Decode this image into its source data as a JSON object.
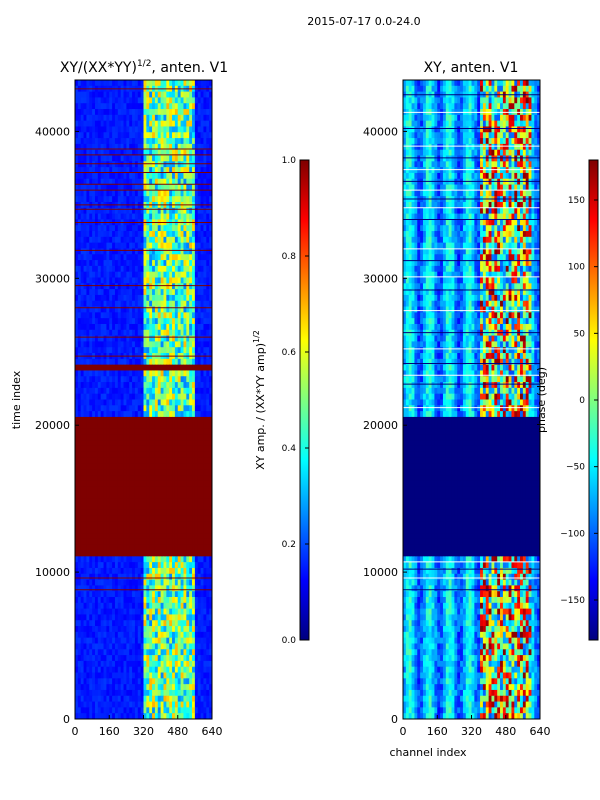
{
  "figure": {
    "suptitle": "2015-07-17 0.0-24.0"
  },
  "colors": {
    "jet": [
      "#00007f",
      "#0000ff",
      "#007fff",
      "#00ffff",
      "#7fff7f",
      "#ffff00",
      "#ff7f00",
      "#ff0000",
      "#7f0000"
    ]
  },
  "chart_data": [
    {
      "type": "heatmap",
      "title": "XY/(XX*YY)",
      "title_exponent": "1/2",
      "title_suffix": ", anten. V1",
      "xlabel": "",
      "ylabel": "time index",
      "xlim": [
        0,
        640
      ],
      "ylim": [
        0,
        43500
      ],
      "xticks": [
        0,
        160,
        320,
        480,
        640
      ],
      "yticks": [
        0,
        10000,
        20000,
        30000,
        40000
      ],
      "colorbar": {
        "label": "XY amp. / (XX*YY amp)",
        "label_exponent": "1/2",
        "range": [
          0.0,
          1.0
        ],
        "ticks": [
          "0.0",
          "0.2",
          "0.4",
          "0.6",
          "0.8",
          "1.0"
        ]
      },
      "saturated_bands": [
        [
          11200,
          20400
        ],
        [
          23600,
          24200
        ]
      ],
      "flag_lines": [
        8800,
        9600,
        24700,
        26000,
        28000,
        29500,
        31900,
        33800,
        34700,
        35000,
        36000,
        36400,
        37200,
        37800,
        38400,
        38800,
        42900
      ],
      "active_channel_range": [
        320,
        560
      ],
      "background_value": 0.15
    },
    {
      "type": "heatmap",
      "title": "XY, anten. V1",
      "xlabel": "channel index",
      "ylabel": "",
      "xlim": [
        0,
        640
      ],
      "ylim": [
        0,
        43500
      ],
      "xticks": [
        0,
        160,
        320,
        480,
        640
      ],
      "yticks": [
        0,
        10000,
        20000,
        30000,
        40000
      ],
      "colorbar": {
        "label": "phase (deg)",
        "range": [
          -180,
          180
        ],
        "ticks": [
          "150",
          "100",
          "50",
          "0",
          "−50",
          "−100",
          "−150"
        ]
      },
      "constant_band": [
        11200,
        20400
      ],
      "flag_lines": [
        8800,
        9600,
        10200,
        10700,
        19500,
        21200,
        22800,
        23400,
        24200,
        25200,
        26300,
        27800,
        29200,
        30100,
        31200,
        32000,
        34000,
        34800,
        35400,
        36000,
        36600,
        37400,
        38200,
        39000,
        40200,
        41300,
        42500
      ],
      "active_channel_range": [
        360,
        600
      ]
    }
  ]
}
